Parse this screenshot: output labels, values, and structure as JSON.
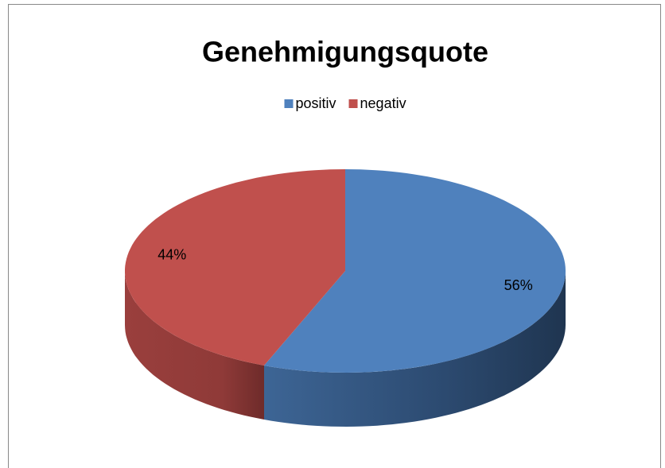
{
  "chart_data": {
    "type": "pie",
    "title": "Genehmigungsquote",
    "categories": [
      "positiv",
      "negativ"
    ],
    "values": [
      56,
      44
    ],
    "value_labels": [
      "56%",
      "44%"
    ],
    "colors": [
      "#4f81bd",
      "#c0504d"
    ],
    "legend": "top"
  }
}
